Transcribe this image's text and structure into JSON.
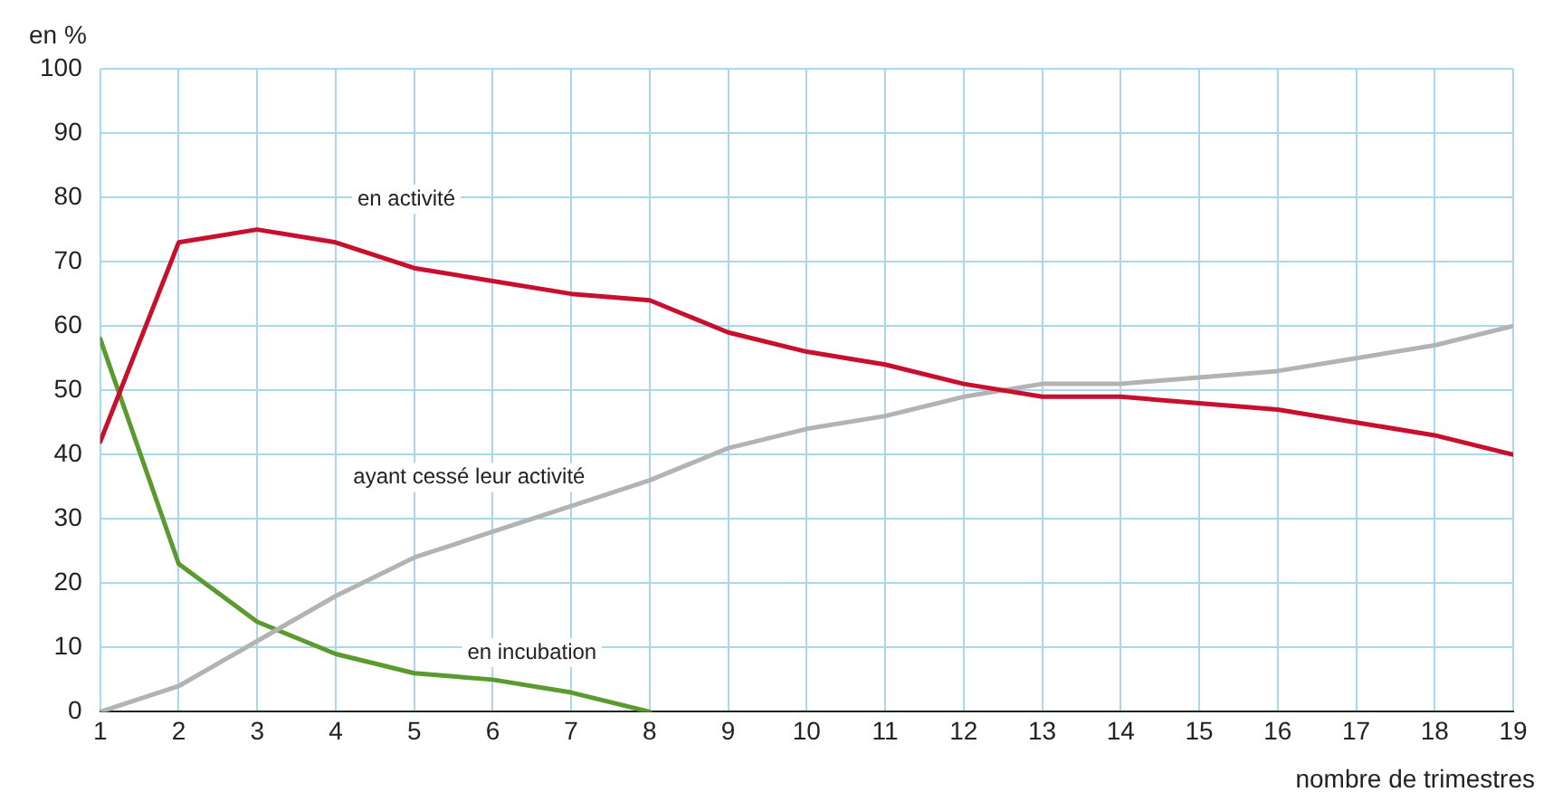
{
  "chart_data": {
    "type": "line",
    "xlabel": "nombre de trimestres",
    "ylabel": "en %",
    "x": [
      1,
      2,
      3,
      4,
      5,
      6,
      7,
      8,
      9,
      10,
      11,
      12,
      13,
      14,
      15,
      16,
      17,
      18,
      19
    ],
    "xlim": [
      1,
      19
    ],
    "xticks": [
      1,
      2,
      3,
      4,
      5,
      6,
      7,
      8,
      9,
      10,
      11,
      12,
      13,
      14,
      15,
      16,
      17,
      18,
      19
    ],
    "ylim": [
      0,
      100
    ],
    "yticks": [
      0,
      10,
      20,
      30,
      40,
      50,
      60,
      70,
      80,
      90,
      100
    ],
    "grid": true,
    "legend": false,
    "marker": "none",
    "line_style": "solid",
    "series": [
      {
        "name": "en activité",
        "color": "#c8102e",
        "values": [
          42,
          73,
          75,
          73,
          69,
          67,
          65,
          64,
          59,
          56,
          54,
          51,
          49,
          49,
          48,
          47,
          45,
          43,
          40
        ]
      },
      {
        "name": "ayant cessé leur activité",
        "color": "#b3b3b3",
        "values": [
          0,
          4,
          11,
          18,
          24,
          28,
          32,
          36,
          41,
          44,
          46,
          49,
          51,
          51,
          52,
          53,
          55,
          57,
          60
        ]
      },
      {
        "name": "en incubation",
        "color": "#5a9a2e",
        "values": [
          58,
          23,
          14,
          9,
          6,
          5,
          3,
          0,
          null,
          null,
          null,
          null,
          null,
          null,
          null,
          null,
          null,
          null,
          null
        ]
      }
    ]
  }
}
